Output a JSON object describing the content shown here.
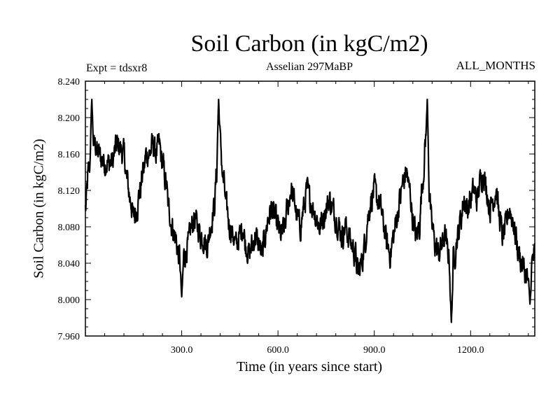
{
  "chart_data": {
    "type": "line",
    "title": "Soil Carbon (in kgC/m2)",
    "subtitle": "Asselian 297MaBP",
    "experiment_label": "Expt = tdsxr8",
    "period_label": "ALL_MONTHS",
    "xlabel": "Time (in years since start)",
    "ylabel": "Soil Carbon (in kgC/m2)",
    "xlim": [
      0,
      1400
    ],
    "ylim": [
      7.96,
      8.24
    ],
    "xticks": [
      300,
      600,
      900,
      1200
    ],
    "xtick_labels": [
      "300.0",
      "600.0",
      "900.0",
      "1200.0"
    ],
    "yticks": [
      7.96,
      8.0,
      8.04,
      8.08,
      8.12,
      8.16,
      8.2,
      8.24
    ],
    "ytick_labels": [
      "7.960",
      "8.000",
      "8.040",
      "8.080",
      "8.120",
      "8.160",
      "8.200",
      "8.240"
    ],
    "grid": false,
    "series": [
      {
        "name": "Soil Carbon",
        "anchors_x": [
          0,
          10,
          20,
          30,
          40,
          60,
          80,
          100,
          120,
          130,
          140,
          150,
          160,
          170,
          180,
          190,
          200,
          210,
          220,
          230,
          240,
          250,
          260,
          270,
          280,
          290,
          300,
          310,
          320,
          330,
          340,
          350,
          360,
          380,
          390,
          400,
          410,
          420,
          430,
          440,
          450,
          460,
          470,
          480,
          490,
          500,
          510,
          520,
          530,
          540,
          550,
          560,
          570,
          580,
          590,
          600,
          610,
          620,
          630,
          640,
          650,
          660,
          670,
          680,
          690,
          700,
          710,
          720,
          730,
          740,
          750,
          760,
          770,
          780,
          790,
          800,
          810,
          820,
          830,
          840,
          850,
          860,
          870,
          880,
          890,
          900,
          910,
          920,
          930,
          940,
          950,
          960,
          970,
          980,
          990,
          1000,
          1010,
          1020,
          1030,
          1040,
          1050,
          1060,
          1070,
          1080,
          1090,
          1100,
          1110,
          1120,
          1130,
          1140,
          1150,
          1160,
          1170,
          1180,
          1190,
          1200,
          1210,
          1220,
          1230,
          1240,
          1250,
          1260,
          1270,
          1280,
          1290,
          1300,
          1310,
          1320,
          1330,
          1340,
          1350,
          1360,
          1370,
          1380,
          1390,
          1400
        ],
        "anchors_y": [
          8.1,
          8.14,
          8.16,
          8.17,
          8.16,
          8.15,
          8.15,
          8.17,
          8.16,
          8.13,
          8.11,
          8.09,
          8.1,
          8.12,
          8.14,
          8.16,
          8.16,
          8.17,
          8.16,
          8.17,
          8.15,
          8.13,
          8.1,
          8.08,
          8.07,
          8.05,
          8.04,
          8.05,
          8.06,
          8.08,
          8.09,
          8.08,
          8.07,
          8.06,
          8.08,
          8.1,
          8.14,
          8.17,
          8.13,
          8.1,
          8.08,
          8.07,
          8.06,
          8.07,
          8.08,
          8.06,
          8.05,
          8.06,
          8.07,
          8.06,
          8.05,
          8.07,
          8.09,
          8.1,
          8.09,
          8.08,
          8.07,
          8.08,
          8.1,
          8.12,
          8.11,
          8.09,
          8.08,
          8.1,
          8.12,
          8.11,
          8.1,
          8.09,
          8.08,
          8.09,
          8.1,
          8.11,
          8.1,
          8.09,
          8.08,
          8.07,
          8.08,
          8.07,
          8.06,
          8.05,
          8.03,
          8.04,
          8.06,
          8.09,
          8.11,
          8.12,
          8.11,
          8.1,
          8.08,
          8.06,
          8.05,
          8.07,
          8.09,
          8.11,
          8.13,
          8.14,
          8.12,
          8.09,
          8.07,
          8.08,
          8.13,
          8.17,
          8.12,
          8.08,
          8.06,
          8.05,
          8.06,
          8.07,
          8.05,
          8.03,
          8.05,
          8.07,
          8.09,
          8.11,
          8.1,
          8.11,
          8.12,
          8.11,
          8.13,
          8.14,
          8.12,
          8.1,
          8.11,
          8.12,
          8.09,
          8.07,
          8.08,
          8.1,
          8.09,
          8.07,
          8.05,
          8.04,
          8.03,
          8.02,
          8.04,
          8.05
        ],
        "notable_extremes": [
          {
            "x": 20,
            "y": 8.22
          },
          {
            "x": 300,
            "y": 8.003
          },
          {
            "x": 415,
            "y": 8.22
          },
          {
            "x": 1065,
            "y": 8.22
          },
          {
            "x": 1140,
            "y": 7.975
          },
          {
            "x": 1385,
            "y": 7.995
          }
        ],
        "noise_amplitude": 0.022,
        "sample_step": 1,
        "color": "#000000"
      }
    ]
  }
}
